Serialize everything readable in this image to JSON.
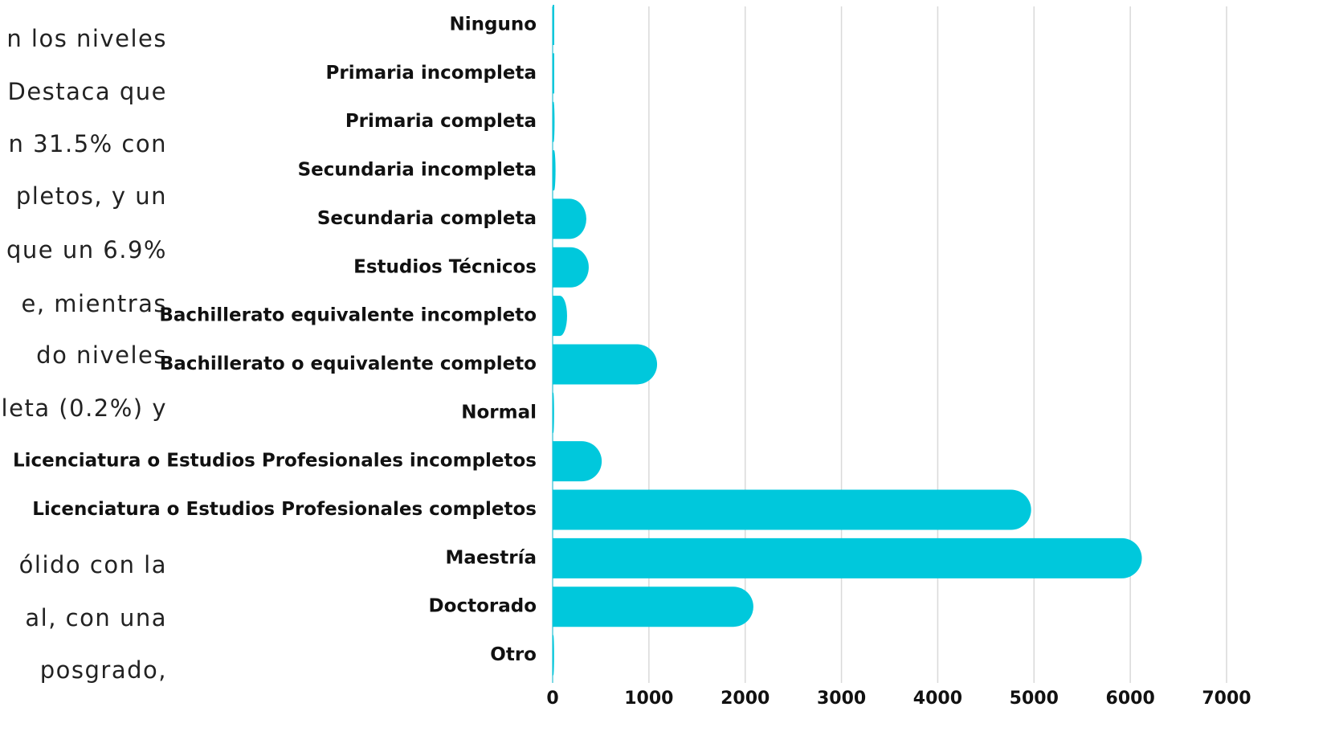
{
  "paragraph_lines": [
    "n los niveles",
    "Destaca que",
    "n 31.5% con",
    "pletos, y un",
    "que un 6.9%",
    "e, mientras",
    "do niveles",
    "leta (0.2%) y",
    "ólido con la",
    "al, con una",
    "posgrado,"
  ],
  "chart_data": {
    "type": "bar",
    "orientation": "horizontal",
    "categories": [
      "Ninguno",
      "Primaria incompleta",
      "Primaria completa",
      "Secundaria incompleta",
      "Secundaria completa",
      "Estudios Técnicos",
      "Bachillerato equivalente incompleto",
      "Bachillerato o equivalente completo",
      "Normal",
      "Licenciatura o Estudios Profesionales incompletos",
      "Licenciatura o Estudios Profesionales completos",
      "Maestría",
      "Doctorado",
      "Otro"
    ],
    "values": [
      2,
      2,
      20,
      30,
      350,
      375,
      150,
      1085,
      15,
      510,
      4970,
      6120,
      2085,
      15
    ],
    "color": "#00c8dc",
    "xlim": [
      0,
      7000
    ],
    "xticks": [
      0,
      1000,
      2000,
      3000,
      4000,
      5000,
      6000,
      7000
    ],
    "grid": true
  }
}
